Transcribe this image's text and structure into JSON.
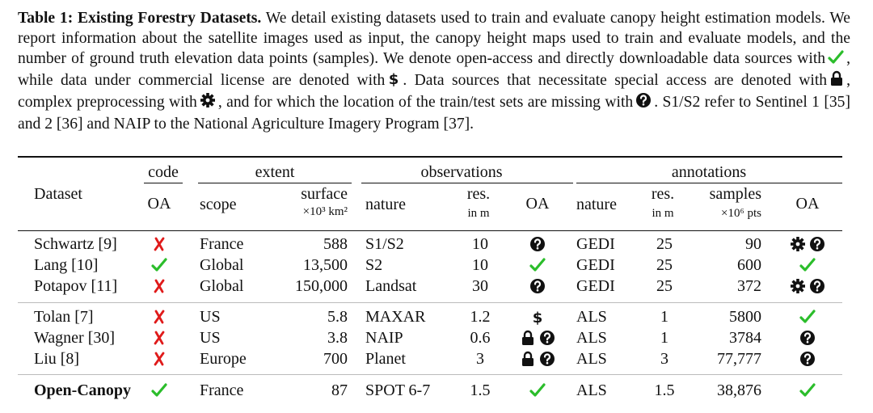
{
  "caption": {
    "label": "Table 1: Existing Forestry Datasets.",
    "line1_rest": " We detail existing datasets used to train and evaluate canopy height",
    "line2": "estimation models.  We report information about the satellite images used as input, the canopy height maps",
    "line3": "used to train and evaluate models, and the number of ground truth elevation data points (samples). We denote",
    "line4_a": "open-access and directly downloadable data sources with",
    "line4_b": ", while data under commercial license are denoted",
    "line5_a": "with",
    "line5_b": ". Data sources that necessitate special access are denoted with",
    "line5_c": ", complex preprocessing with",
    "line5_d": ", and",
    "line6_a": "for which the location of the train/test sets are missing with",
    "line6_b": ". S1/S2 refer to Sentinel 1 [35] and 2 [36] and",
    "line7": "NAIP to the National Agriculture Imagery Program [37]."
  },
  "header": {
    "group_code": "code",
    "group_extent": "extent",
    "group_observations": "observations",
    "group_annotations": "annotations",
    "dataset": "Dataset",
    "code_oa": "OA",
    "scope": "scope",
    "surface": "surface",
    "surface_unit": "×10³ km²",
    "obs_nature": "nature",
    "obs_res": "res.",
    "obs_res_unit": "in m",
    "obs_oa": "OA",
    "ann_nature": "nature",
    "ann_res": "res.",
    "ann_res_unit": "in m",
    "samples": "samples",
    "samples_unit": "×10⁶ pts",
    "ann_oa": "OA"
  },
  "rows": [
    {
      "dataset": "Schwartz [9]",
      "code": "cross",
      "scope": "France",
      "surface": "588",
      "obs_nature": "S1/S2",
      "obs_res": "10",
      "obs_oa": [
        "question"
      ],
      "ann_nature": "GEDI",
      "ann_res": "25",
      "samples": "90",
      "ann_oa": [
        "gear",
        "question"
      ]
    },
    {
      "dataset": "Lang [10]",
      "code": "check",
      "scope": "Global",
      "surface": "13,500",
      "obs_nature": "S2",
      "obs_res": "10",
      "obs_oa": [
        "check"
      ],
      "ann_nature": "GEDI",
      "ann_res": "25",
      "samples": "600",
      "ann_oa": [
        "check"
      ]
    },
    {
      "dataset": "Potapov [11]",
      "code": "cross",
      "scope": "Global",
      "surface": "150,000",
      "obs_nature": "Landsat",
      "obs_res": "30",
      "obs_oa": [
        "question"
      ],
      "ann_nature": "GEDI",
      "ann_res": "25",
      "samples": "372",
      "ann_oa": [
        "gear",
        "question"
      ]
    },
    {
      "dataset": "Tolan [7]",
      "code": "cross",
      "scope": "US",
      "surface": "5.8",
      "obs_nature": "MAXAR",
      "obs_res": "1.2",
      "obs_oa": [
        "dollar"
      ],
      "ann_nature": "ALS",
      "ann_res": "1",
      "samples": "5800",
      "ann_oa": [
        "check"
      ]
    },
    {
      "dataset": "Wagner [30]",
      "code": "cross",
      "scope": "US",
      "surface": "3.8",
      "obs_nature": "NAIP",
      "obs_res": "0.6",
      "obs_oa": [
        "lock",
        "question"
      ],
      "ann_nature": "ALS",
      "ann_res": "1",
      "samples": "3784",
      "ann_oa": [
        "question"
      ]
    },
    {
      "dataset": "Liu [8]",
      "code": "cross",
      "scope": "Europe",
      "surface": "700",
      "obs_nature": "Planet",
      "obs_res": "3",
      "obs_oa": [
        "lock",
        "question"
      ],
      "ann_nature": "ALS",
      "ann_res": "3",
      "samples": "77,777",
      "ann_oa": [
        "question"
      ]
    },
    {
      "dataset": "Open-Canopy",
      "code": "check",
      "scope": "France",
      "surface": "87",
      "obs_nature": "SPOT 6-7",
      "obs_res": "1.5",
      "obs_oa": [
        "check"
      ],
      "ann_nature": "ALS",
      "ann_res": "1.5",
      "samples": "38,876",
      "ann_oa": [
        "check"
      ]
    }
  ],
  "colors": {
    "check": "#2bbd2b",
    "cross": "#e01b1b",
    "ink": "#111111"
  }
}
